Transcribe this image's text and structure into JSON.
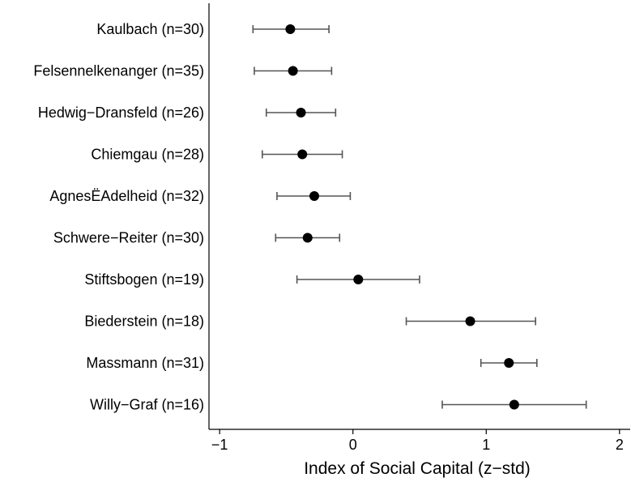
{
  "chart_data": {
    "type": "scatter",
    "title": "",
    "xlabel": "Index of Social Capital (z−std)",
    "ylabel": "",
    "xlim": [
      -1.08,
      2.08
    ],
    "xticks": [
      -1,
      0,
      1,
      2
    ],
    "xtick_labels": [
      "−1",
      "0",
      "1",
      "2"
    ],
    "grid": false,
    "legend": "none",
    "categories": [
      "Kaulbach (n=30)",
      "Felsennelkenanger (n=35)",
      "Hedwig−Dransfeld (n=26)",
      "Chiemgau (n=28)",
      "AgnesË̈Adelheid (n=32)",
      "Schwere−Reiter (n=30)",
      "Stiftsbogen (n=19)",
      "Biederstein (n=18)",
      "Massmann (n=31)",
      "Willy−Graf (n=16)"
    ],
    "series": [
      {
        "estimate": [
          -0.47,
          -0.45,
          -0.39,
          -0.38,
          -0.29,
          -0.34,
          0.04,
          0.88,
          1.17,
          1.21
        ],
        "ci_low": [
          -0.75,
          -0.74,
          -0.65,
          -0.68,
          -0.57,
          -0.58,
          -0.42,
          0.4,
          0.96,
          0.67
        ],
        "ci_high": [
          -0.18,
          -0.16,
          -0.13,
          -0.08,
          -0.02,
          -0.1,
          0.5,
          1.37,
          1.38,
          1.75
        ]
      }
    ],
    "colors": {
      "point": "#000000",
      "errorbar": "#555555",
      "axis": "#000000"
    }
  }
}
